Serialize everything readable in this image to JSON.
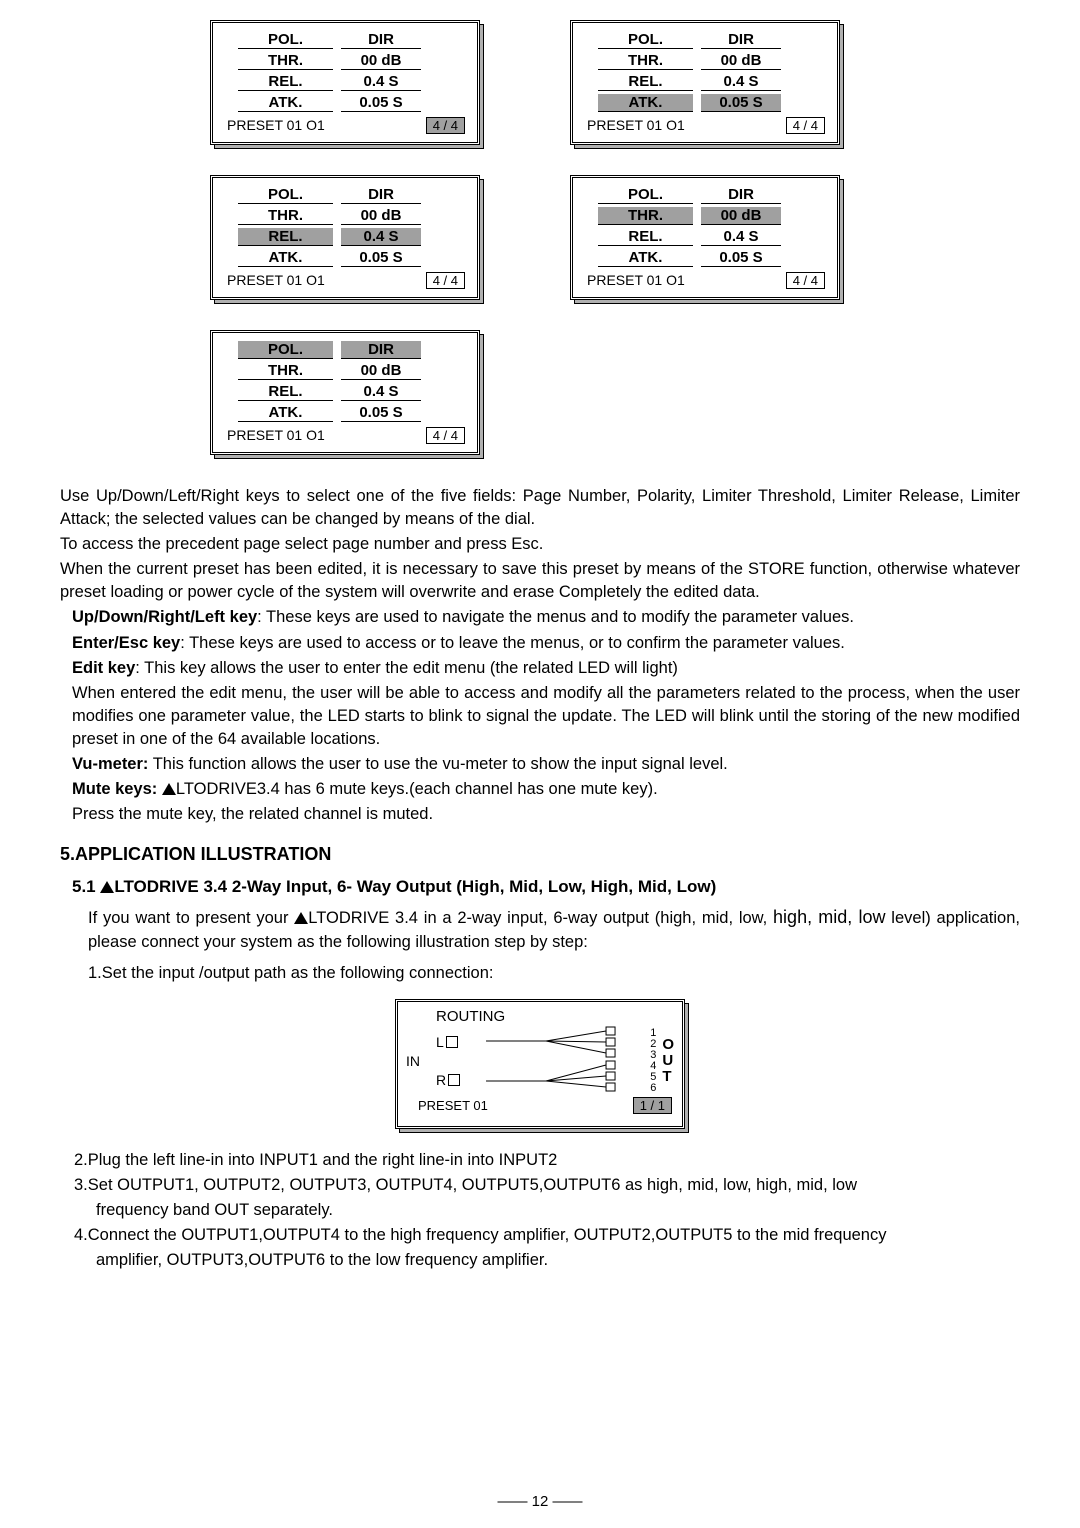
{
  "panels": [
    {
      "pol": {
        "l": "POL.",
        "v": "DIR"
      },
      "thr": {
        "l": "THR.",
        "v": "00 dB"
      },
      "rel": {
        "l": "REL.",
        "v": "0.4 S"
      },
      "atk": {
        "l": "ATK.",
        "v": "0.05 S"
      },
      "preset": "PRESET 01 O1",
      "page": "4 / 4",
      "hl": null,
      "pageHl": true
    },
    {
      "pol": {
        "l": "POL.",
        "v": "DIR"
      },
      "thr": {
        "l": "THR.",
        "v": "00 dB"
      },
      "rel": {
        "l": "REL.",
        "v": "0.4 S"
      },
      "atk": {
        "l": "ATK.",
        "v": "0.05 S"
      },
      "preset": "PRESET 01 O1",
      "page": "4 / 4",
      "hl": "atk",
      "pageHl": false
    },
    {
      "pol": {
        "l": "POL.",
        "v": "DIR"
      },
      "thr": {
        "l": "THR.",
        "v": "00 dB"
      },
      "rel": {
        "l": "REL.",
        "v": "0.4 S"
      },
      "atk": {
        "l": "ATK.",
        "v": "0.05 S"
      },
      "preset": "PRESET 01 O1",
      "page": "4 / 4",
      "hl": "rel",
      "pageHl": false
    },
    {
      "pol": {
        "l": "POL.",
        "v": "DIR"
      },
      "thr": {
        "l": "THR.",
        "v": "00 dB"
      },
      "rel": {
        "l": "REL.",
        "v": "0.4 S"
      },
      "atk": {
        "l": "ATK.",
        "v": "0.05 S"
      },
      "preset": "PRESET 01 O1",
      "page": "4 / 4",
      "hl": "thr",
      "pageHl": false
    },
    {
      "pol": {
        "l": "POL.",
        "v": "DIR"
      },
      "thr": {
        "l": "THR.",
        "v": "00 dB"
      },
      "rel": {
        "l": "REL.",
        "v": "0.4 S"
      },
      "atk": {
        "l": "ATK.",
        "v": "0.05 S"
      },
      "preset": "PRESET 01 O1",
      "page": "4 / 4",
      "hl": "pol",
      "pageHl": false
    }
  ],
  "para1a": "Use Up/Down/Left/Right keys to select one of the five fields: Page Number, Polarity, Limiter Threshold, Limiter Release, Limiter Attack; the selected values can be changed by means of the dial.",
  "para1b": "To access the precedent page select page number and press Esc.",
  "para2": "When the current preset has been edited, it is necessary to save this preset by means of the STORE function, otherwise whatever preset loading or power cycle of the system will overwrite and erase Completely the edited data.",
  "keys": {
    "udl": {
      "b": "Up/Down/Right/Left key",
      "t": ": These keys are used to navigate the menus and to modify the parameter values."
    },
    "enter": {
      "b": "Enter/Esc key",
      "t": ": These keys are used to access or to leave the menus, or to confirm the parameter values."
    },
    "edit": {
      "b": "Edit key",
      "t": ": This key allows the user to enter the edit menu (the related LED will light)"
    },
    "editpara": "When entered the edit menu, the user will be able to access and modify all the parameters related to the process, when the user modifies one parameter value, the LED starts to blink to signal the update. The LED will blink until the storing of the new modified preset in one of the 64 available locations.",
    "vu": {
      "b": "Vu-meter:",
      "t": " This function allows the user to use the vu-meter to show the input signal level."
    },
    "mute": {
      "b": "Mute keys: ",
      "t": "LTODRIVE3.4 has 6 mute keys.(each channel has one mute key)."
    },
    "mutepara": "Press the mute key, the related channel is muted."
  },
  "section5": "5.APPLICATION ILLUSTRATION",
  "sub51a": "5.1 ",
  "sub51b": "LTODRIVE 3.4 2-Way Input, 6- Way Output (High, Mid, Low, High, Mid, Low)",
  "app1a": "If you want to present your ",
  "app1b": "LTODRIVE 3.4 in a 2-way input, 6-way output (high, mid, low, ",
  "app1c": "high, mid, low",
  "app1d": " level) application, please connect your system as the following illustration step by step:",
  "app2": "1.Set the input /output path as the following connection:",
  "routing": {
    "title": "ROUTING",
    "in": "IN",
    "l": "L",
    "r": "R",
    "nums": [
      "1",
      "2",
      "3",
      "4",
      "5",
      "6"
    ],
    "out": [
      "O",
      "U",
      "T"
    ],
    "preset": "PRESET 01",
    "page": "1 / 1"
  },
  "list": {
    "i2": "2.Plug the left line-in into INPUT1 and the right line-in into INPUT2",
    "i3": "3.Set OUTPUT1, OUTPUT2, OUTPUT3, OUTPUT4, OUTPUT5,OUTPUT6 as high, mid, low, high, mid, low",
    "i3b": "frequency band OUT separately.",
    "i4": "4.Connect the OUTPUT1,OUTPUT4 to the high frequency amplifier, OUTPUT2,OUTPUT5 to the mid frequency",
    "i4b": "amplifier, OUTPUT3,OUTPUT6 to the low frequency amplifier."
  },
  "pagenum": "12"
}
